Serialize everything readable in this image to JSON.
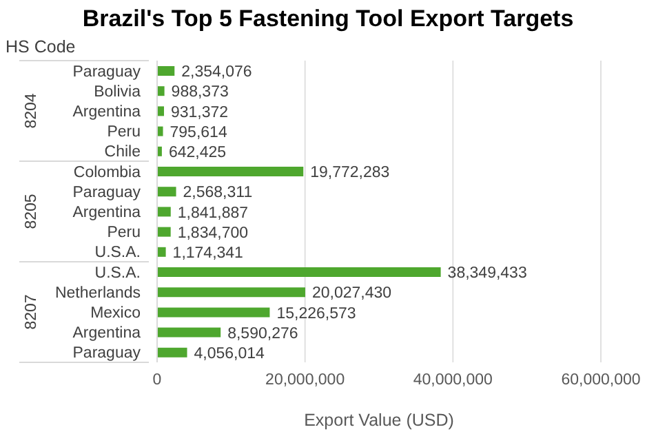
{
  "chart_data": {
    "type": "bar",
    "orientation": "horizontal",
    "title": "Brazil's Top 5 Fastening Tool Export Targets",
    "ylabel": "HS Code",
    "xlabel": "Export Value (USD)",
    "categories": [
      "Paraguay",
      "Bolivia",
      "Argentina",
      "Peru",
      "Chile",
      "Colombia",
      "Paraguay",
      "Argentina",
      "Peru",
      "U.S.A.",
      "U.S.A.",
      "Netherlands",
      "Mexico",
      "Argentina",
      "Paraguay"
    ],
    "values": [
      2354076,
      988373,
      931372,
      795614,
      642425,
      19772283,
      2568311,
      1841887,
      1834700,
      1174341,
      38349433,
      20027430,
      15226573,
      8590276,
      4056014
    ],
    "value_labels": [
      "2,354,076",
      "988,373",
      "931,372",
      "795,614",
      "642,425",
      "19,772,283",
      "2,568,311",
      "1,841,887",
      "1,834,700",
      "1,174,341",
      "38,349,433",
      "20,027,430",
      "15,226,573",
      "8,590,276",
      "4,056,014"
    ],
    "annotations": [
      "8204",
      "8205",
      "8207"
    ],
    "color": "#4ea72e",
    "xlim": [
      0,
      60000000
    ],
    "xticks": [
      0,
      {
        "value": 20000000,
        "label": "20,000,000"
      },
      {
        "value": 40000000,
        "label": "40,000,000"
      },
      {
        "value": 60000000,
        "label": "60,000,000"
      }
    ],
    "grid": "x",
    "legend": false
  }
}
